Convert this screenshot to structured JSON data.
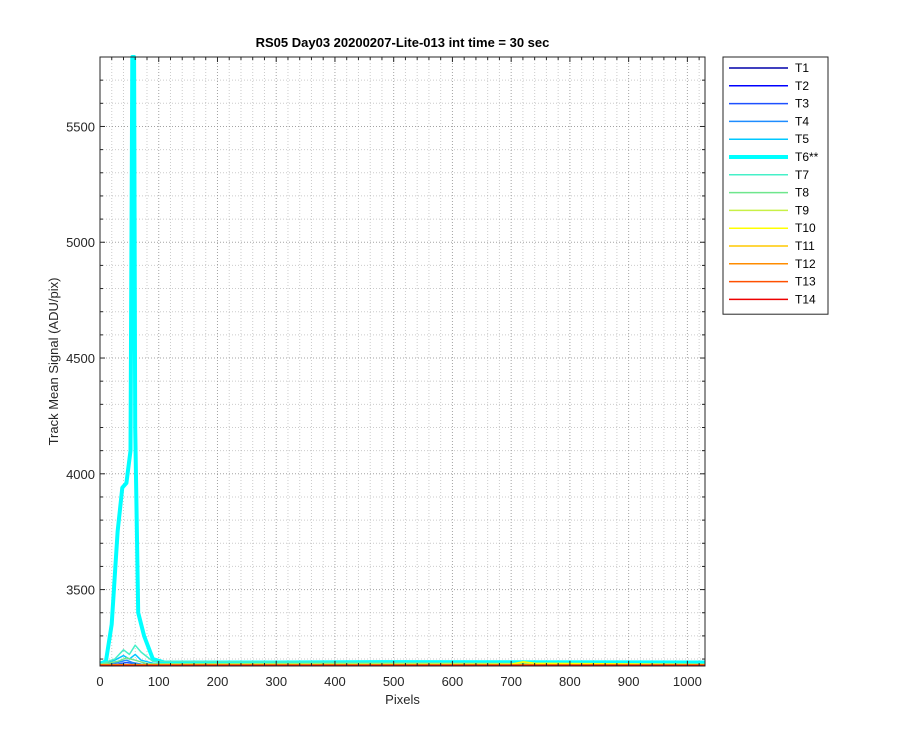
{
  "chart_data": {
    "type": "line",
    "title": "RS05 Day03 20200207-Lite-013 int time = 30 sec",
    "xlabel": "Pixels",
    "ylabel": "Track Mean Signal (ADU/pix)",
    "xlim": [
      0,
      1030
    ],
    "ylim": [
      3170,
      5800
    ],
    "x_ticks": [
      0,
      100,
      200,
      300,
      400,
      500,
      600,
      700,
      800,
      900,
      1000
    ],
    "y_ticks": [
      3500,
      4000,
      4500,
      5000,
      5500
    ],
    "grid": true,
    "minor_grid": true,
    "legend_position": "outside-right",
    "series": [
      {
        "name": "T1",
        "color": "#0000aa",
        "width": 1.5,
        "points": [
          [
            0,
            3172
          ],
          [
            1030,
            3172
          ]
        ]
      },
      {
        "name": "T2",
        "color": "#0000ff",
        "width": 1.5,
        "points": [
          [
            0,
            3173
          ],
          [
            1030,
            3173
          ]
        ]
      },
      {
        "name": "T3",
        "color": "#1e50ff",
        "width": 1.5,
        "points": [
          [
            0,
            3174
          ],
          [
            30,
            3178
          ],
          [
            45,
            3185
          ],
          [
            60,
            3180
          ],
          [
            80,
            3175
          ],
          [
            1030,
            3174
          ]
        ]
      },
      {
        "name": "T4",
        "color": "#1e8cff",
        "width": 1.5,
        "points": [
          [
            0,
            3175
          ],
          [
            30,
            3185
          ],
          [
            45,
            3195
          ],
          [
            55,
            3185
          ],
          [
            70,
            3178
          ],
          [
            1030,
            3175
          ]
        ]
      },
      {
        "name": "T5",
        "color": "#00c8ff",
        "width": 1.5,
        "points": [
          [
            0,
            3177
          ],
          [
            25,
            3195
          ],
          [
            40,
            3215
          ],
          [
            50,
            3200
          ],
          [
            60,
            3220
          ],
          [
            70,
            3195
          ],
          [
            90,
            3182
          ],
          [
            1030,
            3177
          ]
        ]
      },
      {
        "name": "T6**",
        "color": "#00ffff",
        "width": 4,
        "points": [
          [
            0,
            3180
          ],
          [
            10,
            3190
          ],
          [
            20,
            3350
          ],
          [
            30,
            3750
          ],
          [
            38,
            3940
          ],
          [
            45,
            3960
          ],
          [
            52,
            4100
          ],
          [
            55,
            5800
          ],
          [
            58,
            5800
          ],
          [
            60,
            4200
          ],
          [
            65,
            3400
          ],
          [
            75,
            3300
          ],
          [
            90,
            3200
          ],
          [
            110,
            3185
          ],
          [
            300,
            3185
          ],
          [
            500,
            3187
          ],
          [
            1030,
            3185
          ]
        ]
      },
      {
        "name": "T7",
        "color": "#46f0c8",
        "width": 1.5,
        "points": [
          [
            0,
            3178
          ],
          [
            25,
            3200
          ],
          [
            40,
            3240
          ],
          [
            50,
            3220
          ],
          [
            60,
            3260
          ],
          [
            70,
            3230
          ],
          [
            90,
            3190
          ],
          [
            1030,
            3178
          ]
        ]
      },
      {
        "name": "T8",
        "color": "#6ee68c",
        "width": 1.5,
        "points": [
          [
            0,
            3176
          ],
          [
            30,
            3190
          ],
          [
            45,
            3205
          ],
          [
            60,
            3195
          ],
          [
            80,
            3180
          ],
          [
            1030,
            3176
          ]
        ]
      },
      {
        "name": "T9",
        "color": "#c8f046",
        "width": 1.5,
        "points": [
          [
            0,
            3175
          ],
          [
            700,
            3177
          ],
          [
            720,
            3185
          ],
          [
            740,
            3180
          ],
          [
            1030,
            3175
          ]
        ]
      },
      {
        "name": "T10",
        "color": "#ffff00",
        "width": 1.5,
        "points": [
          [
            0,
            3176
          ],
          [
            700,
            3178
          ],
          [
            720,
            3188
          ],
          [
            740,
            3182
          ],
          [
            1030,
            3176
          ]
        ]
      },
      {
        "name": "T11",
        "color": "#ffc800",
        "width": 1.5,
        "points": [
          [
            0,
            3175
          ],
          [
            1030,
            3175
          ]
        ]
      },
      {
        "name": "T12",
        "color": "#ff8c00",
        "width": 1.5,
        "points": [
          [
            0,
            3174
          ],
          [
            1030,
            3174
          ]
        ]
      },
      {
        "name": "T13",
        "color": "#ff5000",
        "width": 1.5,
        "points": [
          [
            0,
            3173
          ],
          [
            1030,
            3173
          ]
        ]
      },
      {
        "name": "T14",
        "color": "#ee0000",
        "width": 1.5,
        "points": [
          [
            0,
            3172
          ],
          [
            1030,
            3172
          ]
        ]
      }
    ]
  }
}
